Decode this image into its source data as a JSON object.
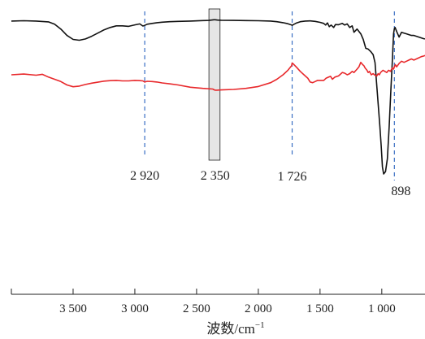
{
  "chart_data": {
    "type": "line",
    "title": "",
    "xlabel": "波数/cm",
    "xlabel_superscript": "−1",
    "ylabel": "",
    "xlim": [
      4000,
      650
    ],
    "x_reversed": true,
    "yaxis_shown": false,
    "grid": false,
    "legend": "none",
    "x_ticks": [
      {
        "value": 3500,
        "label": "3 500"
      },
      {
        "value": 3000,
        "label": "3 000"
      },
      {
        "value": 2500,
        "label": "2 500"
      },
      {
        "value": 2000,
        "label": "2 000"
      },
      {
        "value": 1500,
        "label": "1 500"
      },
      {
        "value": 1000,
        "label": "1 000"
      }
    ],
    "series": [
      {
        "color": "#111111",
        "x": [
          4000,
          3900,
          3800,
          3700,
          3650,
          3600,
          3550,
          3500,
          3450,
          3400,
          3350,
          3300,
          3250,
          3200,
          3150,
          3100,
          3050,
          3000,
          2960,
          2935,
          2920,
          2900,
          2860,
          2820,
          2780,
          2720,
          2650,
          2550,
          2450,
          2400,
          2360,
          2350,
          2330,
          2300,
          2200,
          2100,
          2000,
          1900,
          1850,
          1800,
          1760,
          1730,
          1726,
          1715,
          1690,
          1660,
          1620,
          1580,
          1540,
          1500,
          1470,
          1455,
          1440,
          1425,
          1410,
          1390,
          1375,
          1350,
          1320,
          1300,
          1280,
          1260,
          1240,
          1225,
          1200,
          1170,
          1150,
          1130,
          1110,
          1090,
          1070,
          1055,
          1045,
          1035,
          1025,
          1015,
          1005,
          995,
          985,
          970,
          955,
          940,
          925,
          915,
          905,
          898,
          892,
          880,
          860,
          840,
          820,
          800,
          780,
          760,
          740,
          720,
          700,
          680,
          660,
          650
        ],
        "y": [
          96,
          96.2,
          96,
          95.5,
          94,
          91,
          87,
          84.5,
          84,
          84.8,
          86.5,
          88.5,
          90.5,
          92,
          93,
          93,
          92.7,
          93.6,
          94.2,
          92.9,
          93.3,
          94,
          94.5,
          95,
          95.3,
          95.6,
          95.8,
          96,
          96.3,
          96.4,
          96.8,
          96.8,
          96.6,
          96.5,
          96.4,
          96.3,
          96.2,
          96,
          95.6,
          95,
          94.3,
          93.5,
          93.3,
          93.8,
          94.8,
          95.6,
          96,
          96.1,
          95.8,
          95.2,
          94.5,
          93.5,
          94.8,
          92.5,
          93.5,
          92,
          93.8,
          93.7,
          94.5,
          93.5,
          94.2,
          92,
          93,
          89,
          91,
          88,
          84.5,
          79,
          78.5,
          77,
          75,
          70,
          60,
          50,
          40,
          30,
          18,
          5,
          0.5,
          2,
          10,
          30,
          55,
          70,
          88,
          91.2,
          92,
          89.5,
          86,
          89,
          88.5,
          88,
          87.5,
          87,
          87,
          86.5,
          86,
          85.5,
          85,
          84.8
        ]
      },
      {
        "color": "#e8282b",
        "x": [
          4000,
          3900,
          3800,
          3750,
          3700,
          3650,
          3600,
          3550,
          3500,
          3450,
          3400,
          3350,
          3300,
          3250,
          3200,
          3150,
          3100,
          3050,
          3000,
          2960,
          2935,
          2920,
          2900,
          2860,
          2820,
          2780,
          2720,
          2650,
          2550,
          2450,
          2400,
          2370,
          2355,
          2350,
          2335,
          2300,
          2200,
          2100,
          2000,
          1900,
          1850,
          1800,
          1760,
          1730,
          1726,
          1715,
          1690,
          1660,
          1620,
          1600,
          1580,
          1560,
          1540,
          1520,
          1500,
          1470,
          1450,
          1430,
          1415,
          1400,
          1380,
          1350,
          1320,
          1300,
          1280,
          1260,
          1240,
          1225,
          1200,
          1185,
          1170,
          1155,
          1145,
          1135,
          1120,
          1110,
          1100,
          1085,
          1070,
          1060,
          1050,
          1040,
          1030,
          1020,
          1010,
          1000,
          990,
          975,
          960,
          945,
          930,
          915,
          905,
          898,
          890,
          880,
          860,
          840,
          820,
          800,
          780,
          760,
          740,
          720,
          700,
          680,
          660,
          650
        ],
        "y": [
          88.5,
          88.8,
          88.3,
          88.7,
          87.5,
          86.5,
          85.5,
          84,
          83.2,
          83.5,
          84.2,
          84.8,
          85.2,
          85.7,
          85.9,
          86,
          85.8,
          85.8,
          86,
          85.9,
          85.8,
          85.3,
          85.6,
          85.5,
          85.3,
          84.9,
          84.5,
          84,
          83,
          82.5,
          82.3,
          82.2,
          81.8,
          81.7,
          81.7,
          81.8,
          82,
          82.5,
          83.3,
          85,
          86.5,
          88.5,
          90.5,
          92.5,
          93.7,
          93.2,
          91.8,
          90,
          88,
          87,
          85.3,
          85,
          85.5,
          86,
          86,
          86,
          87,
          87.5,
          87.8,
          86.5,
          87.5,
          88,
          89.5,
          89.2,
          88.5,
          89,
          90,
          89.5,
          91,
          92,
          94,
          93,
          92.5,
          91.5,
          90.5,
          89.5,
          90,
          88.5,
          89,
          88.5,
          88.2,
          88,
          89,
          88.5,
          89.5,
          90,
          90.5,
          90,
          89.5,
          90.5,
          90,
          91.5,
          91,
          92,
          93,
          92,
          93.5,
          94.5,
          94,
          94.5,
          95,
          95.5,
          95,
          95.5,
          96,
          96.5,
          96.8,
          97
        ]
      }
    ],
    "annotations": [
      {
        "value": 2920,
        "label": "2 920"
      },
      {
        "value": 2350,
        "label": "2 350"
      },
      {
        "value": 1726,
        "label": "1 726"
      },
      {
        "value": 898,
        "label": "898"
      }
    ]
  }
}
